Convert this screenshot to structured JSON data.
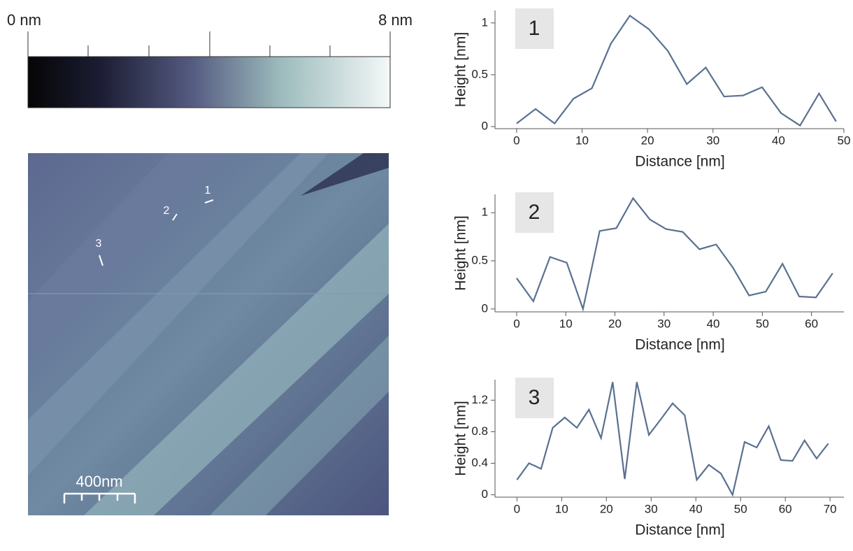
{
  "colorbar": {
    "min_label": "0 nm",
    "max_label": "8 nm"
  },
  "image": {
    "scale_bar": "400nm",
    "markers": [
      "1",
      "2",
      "3"
    ]
  },
  "chart_data": [
    {
      "type": "line",
      "annotation": "1",
      "x_label": "Distance [nm]",
      "y_label": "Height [nm]",
      "color": "#5a7190",
      "x": [
        0,
        2.9,
        5.8,
        8.7,
        11.5,
        14.4,
        17.3,
        20.2,
        23.1,
        26.0,
        28.9,
        31.7,
        34.6,
        37.5,
        40.4,
        43.3,
        46.2,
        48.8
      ],
      "values": [
        0.03,
        0.17,
        0.03,
        0.27,
        0.37,
        0.8,
        1.07,
        0.94,
        0.73,
        0.41,
        0.57,
        0.29,
        0.3,
        0.38,
        0.13,
        0.01,
        0.32,
        0.05
      ],
      "xlim": [
        -3.3,
        50
      ],
      "ylim": [
        -0.02,
        1.12
      ],
      "xticks": [
        0,
        10,
        20,
        30,
        40,
        50
      ],
      "yticks": [
        0,
        0.5,
        1
      ]
    },
    {
      "type": "line",
      "annotation": "2",
      "x_label": "Distance [nm]",
      "y_label": "Height [nm]",
      "color": "#5a7190",
      "x": [
        0,
        3.4,
        6.8,
        10.2,
        13.5,
        16.9,
        20.3,
        23.7,
        27.1,
        30.4,
        33.8,
        37.2,
        40.6,
        44.0,
        47.3,
        50.7,
        54.1,
        57.5,
        60.9,
        64.3
      ],
      "values": [
        0.32,
        0.08,
        0.54,
        0.48,
        0.0,
        0.81,
        0.84,
        1.15,
        0.93,
        0.83,
        0.8,
        0.62,
        0.67,
        0.43,
        0.14,
        0.18,
        0.47,
        0.13,
        0.12,
        0.37
      ],
      "xlim": [
        -4.4,
        66.6
      ],
      "ylim": [
        -0.03,
        1.19
      ],
      "xticks": [
        0,
        10,
        20,
        30,
        40,
        50,
        60
      ],
      "yticks": [
        0,
        0.5,
        1
      ]
    },
    {
      "type": "line",
      "annotation": "3",
      "x_label": "Distance [nm]",
      "y_label": "Height [nm]",
      "color": "#5a7190",
      "x": [
        0,
        2.7,
        5.4,
        8.0,
        10.7,
        13.4,
        16.1,
        18.8,
        21.4,
        24.1,
        26.8,
        29.5,
        32.2,
        34.8,
        37.5,
        40.2,
        42.9,
        45.6,
        48.2,
        50.9,
        53.6,
        56.3,
        59.0,
        61.6,
        64.3,
        67.0,
        69.6
      ],
      "values": [
        0.19,
        0.4,
        0.33,
        0.85,
        0.98,
        0.85,
        1.08,
        0.72,
        1.43,
        0.2,
        1.43,
        0.76,
        0.96,
        1.16,
        1.01,
        0.19,
        0.38,
        0.27,
        0.0,
        0.67,
        0.6,
        0.87,
        0.44,
        0.43,
        0.69,
        0.46,
        0.65
      ],
      "xlim": [
        -4.9,
        73.1
      ],
      "ylim": [
        -0.03,
        1.46
      ],
      "xticks": [
        0,
        10,
        20,
        30,
        40,
        50,
        60,
        70
      ],
      "yticks": [
        0,
        0.4,
        0.8,
        1.2
      ]
    }
  ]
}
